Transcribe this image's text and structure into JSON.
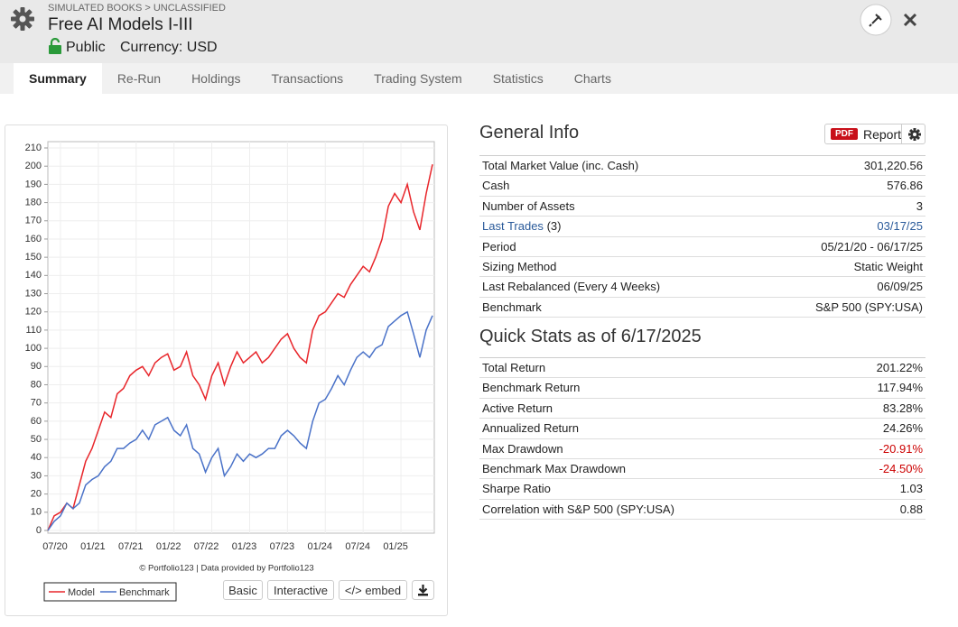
{
  "header": {
    "breadcrumb": "SIMULATED BOOKS > UNCLASSIFIED",
    "title": "Free AI Models I-III",
    "visibility": "Public",
    "currency": "Currency: USD"
  },
  "tabs": [
    "Summary",
    "Re-Run",
    "Holdings",
    "Transactions",
    "Trading System",
    "Statistics",
    "Charts"
  ],
  "chart_panel": {
    "credit": "© Portfolio123 | Data provided by Portfolio123",
    "buttons": [
      "Basic",
      "Interactive",
      "</> embed"
    ]
  },
  "chart_data": {
    "type": "line",
    "categories": [
      null,
      null,
      "07/20",
      null,
      null,
      null,
      null,
      null,
      "01/21",
      null,
      null,
      null,
      null,
      null,
      "07/21",
      null,
      null,
      null,
      null,
      null,
      "01/22",
      null,
      null,
      null,
      null,
      null,
      "07/22",
      null,
      null,
      null,
      null,
      null,
      "01/23",
      null,
      null,
      null,
      null,
      null,
      "07/23",
      null,
      null,
      null,
      null,
      null,
      "01/24",
      null,
      null,
      null,
      null,
      null,
      "07/24",
      null,
      null,
      null,
      null,
      null,
      "01/25",
      null,
      null,
      null,
      null,
      null
    ],
    "series": [
      {
        "name": "Model",
        "color": "#e8262b",
        "values": [
          0,
          8,
          10,
          15,
          12,
          25,
          38,
          45,
          55,
          65,
          62,
          75,
          78,
          85,
          88,
          90,
          85,
          92,
          95,
          97,
          88,
          90,
          98,
          85,
          80,
          72,
          85,
          92,
          80,
          90,
          98,
          92,
          95,
          98,
          92,
          95,
          100,
          105,
          108,
          100,
          95,
          92,
          110,
          118,
          120,
          125,
          130,
          128,
          135,
          140,
          145,
          142,
          150,
          160,
          178,
          185,
          180,
          190,
          175,
          165,
          185,
          201
        ]
      },
      {
        "name": "Benchmark",
        "color": "#4a72c8",
        "values": [
          0,
          5,
          8,
          15,
          12,
          15,
          25,
          28,
          30,
          35,
          38,
          45,
          45,
          48,
          50,
          55,
          50,
          58,
          60,
          62,
          55,
          52,
          58,
          45,
          42,
          32,
          40,
          45,
          30,
          35,
          42,
          38,
          42,
          40,
          42,
          45,
          45,
          52,
          55,
          52,
          48,
          45,
          60,
          70,
          72,
          78,
          85,
          80,
          88,
          95,
          98,
          95,
          100,
          102,
          112,
          115,
          118,
          120,
          108,
          95,
          110,
          118
        ]
      }
    ],
    "ylim": [
      0,
      210
    ],
    "yticks": [
      0,
      10,
      20,
      30,
      40,
      50,
      60,
      70,
      80,
      90,
      100,
      110,
      120,
      130,
      140,
      150,
      160,
      170,
      180,
      190,
      200,
      210
    ],
    "grid": true,
    "legend": "bottom-left"
  },
  "general_info": {
    "title": "General Info",
    "report_badge": "PDF",
    "report_label": "Report",
    "rows": [
      {
        "label": "Total Market Value (inc. Cash)",
        "value": "301,220.56"
      },
      {
        "label": "Cash",
        "value": "576.86"
      },
      {
        "label": "Number of Assets",
        "value": "3"
      },
      {
        "label": "Last Trades",
        "extra": "(3)",
        "value": "03/17/25"
      },
      {
        "label": "Period",
        "value": "05/21/20 - 06/17/25"
      },
      {
        "label": "Sizing Method",
        "value": "Static Weight"
      },
      {
        "label": "Last Rebalanced (Every 4 Weeks)",
        "value": "06/09/25"
      },
      {
        "label": "Benchmark",
        "value": "S&P 500 (SPY:USA)"
      }
    ]
  },
  "quick_stats": {
    "title": "Quick Stats as of 6/17/2025",
    "rows": [
      {
        "label": "Total Return",
        "value": "201.22%"
      },
      {
        "label": "Benchmark Return",
        "value": "117.94%"
      },
      {
        "label": "Active Return",
        "value": "83.28%"
      },
      {
        "label": "Annualized Return",
        "value": "24.26%"
      },
      {
        "label": "Max Drawdown",
        "value": "-20.91%"
      },
      {
        "label": "Benchmark Max Drawdown",
        "value": "-24.50%"
      },
      {
        "label": "Sharpe Ratio",
        "value": "1.03"
      },
      {
        "label": "Correlation with S&P 500 (SPY:USA)",
        "value": "0.88"
      }
    ]
  }
}
